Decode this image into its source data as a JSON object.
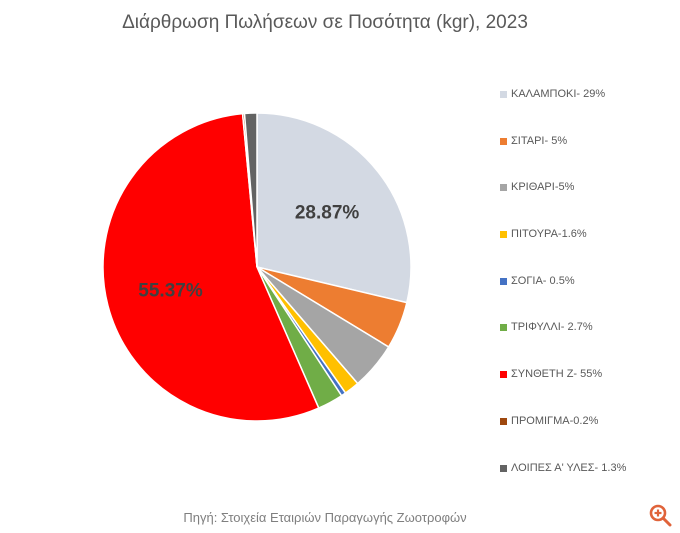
{
  "chart_data": {
    "type": "pie",
    "title": "Διάρθρωση Πωλήσεων σε Ποσότητα (kgr), 2023",
    "source": "Πηγή: Στοιχεία Εταιριών Παραγωγής Ζωοτροφών",
    "legend_position": "right",
    "slices": [
      {
        "label": "ΚΑΛΑΜΠΟΚΙ- 29%",
        "value": 28.87,
        "color": "#d3d9e3",
        "data_label": "28.87%"
      },
      {
        "label": "ΣΙΤΑΡΙ- 5%",
        "value": 5.0,
        "color": "#ed7d31",
        "data_label": ""
      },
      {
        "label": "ΚΡΙΘΑΡΙ-5%",
        "value": 5.0,
        "color": "#a5a5a5",
        "data_label": ""
      },
      {
        "label": "ΠΙΤΟΥΡΑ-1.6%",
        "value": 1.6,
        "color": "#ffc000",
        "data_label": ""
      },
      {
        "label": "ΣΟΓΙΑ- 0.5%",
        "value": 0.5,
        "color": "#4472c4",
        "data_label": ""
      },
      {
        "label": "ΤΡΙΦΥΛΛΙ- 2.7%",
        "value": 2.7,
        "color": "#70ad47",
        "data_label": ""
      },
      {
        "label": "ΣΥΝΘΕΤΗ Ζ- 55%",
        "value": 55.37,
        "color": "#ff0000",
        "data_label": "55.37%"
      },
      {
        "label": "ΠΡΟΜΙΓΜΑ-0.2%",
        "value": 0.2,
        "color": "#9e480e",
        "data_label": ""
      },
      {
        "label": "ΛΟΙΠΕΣ Α' ΥΛΕΣ- 1.3%",
        "value": 1.3,
        "color": "#636363",
        "data_label": ""
      }
    ]
  },
  "toolbar": {
    "zoom_icon": "zoom-in-icon",
    "zoom_color": "#e0633a"
  }
}
